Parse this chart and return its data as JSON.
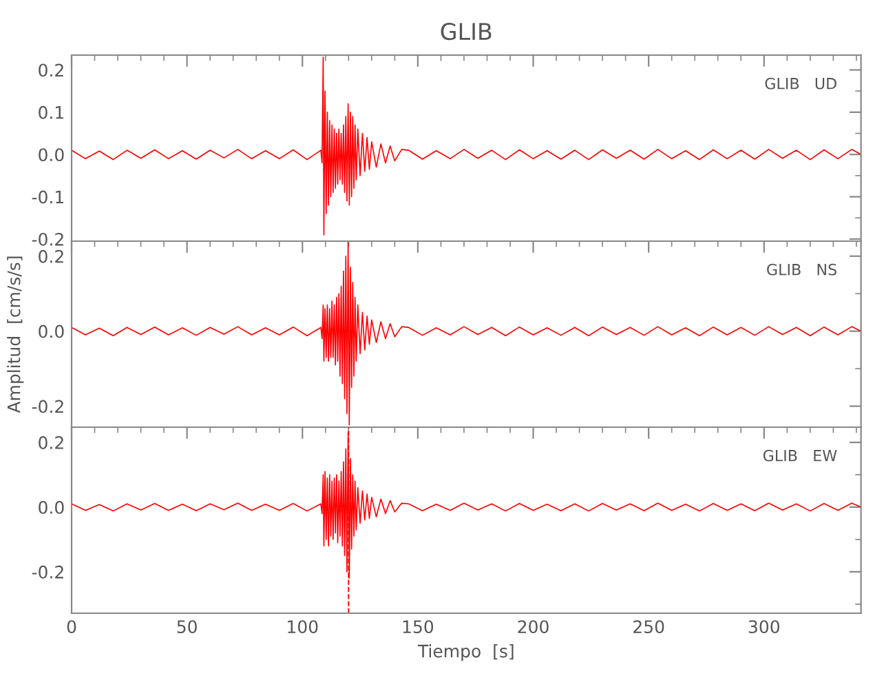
{
  "chart_data": [
    {
      "type": "line",
      "title": "GLIB",
      "annotations": [
        "GLIB   UD"
      ],
      "xlim": [
        0,
        342
      ],
      "xticks": [
        0,
        50,
        100,
        150,
        200,
        250,
        300
      ],
      "ylim": [
        -0.205,
        0.235
      ],
      "yticks": [
        {
          "value": -0.2,
          "label": "-0.2"
        },
        {
          "value": -0.1,
          "label": "-0.1"
        },
        {
          "value": 0.0,
          "label": "0.0"
        },
        {
          "value": 0.1,
          "label": "0.1"
        },
        {
          "value": 0.2,
          "label": "0.2"
        }
      ],
      "tick_labels": "y",
      "grid": false,
      "marker": "none",
      "line_style": "solid",
      "x": [
        0,
        6,
        12,
        18,
        24,
        30,
        36,
        42,
        48,
        54,
        60,
        66,
        72,
        78,
        84,
        90,
        96,
        102,
        108,
        108.5,
        109,
        109.3,
        109.8,
        110.3,
        110.8,
        111.3,
        111.8,
        112.3,
        112.8,
        113.3,
        113.8,
        114.3,
        114.8,
        115.3,
        115.8,
        116.3,
        116.8,
        117.3,
        117.8,
        118.3,
        118.8,
        119.3,
        119.8,
        120.3,
        120.8,
        121.3,
        121.8,
        122.3,
        122.8,
        123.3,
        124,
        125,
        126,
        127,
        128,
        129,
        130,
        132,
        134,
        136,
        138,
        140,
        143,
        146,
        152,
        158,
        164,
        170,
        176,
        182,
        188,
        194,
        200,
        206,
        212,
        218,
        224,
        230,
        236,
        242,
        248,
        254,
        260,
        266,
        272,
        278,
        284,
        290,
        296,
        302,
        308,
        314,
        320,
        326,
        332,
        338,
        342
      ],
      "series": [
        {
          "color": "#ff0000",
          "values": [
            0.01,
            -0.01,
            0.008,
            -0.012,
            0.01,
            -0.009,
            0.011,
            -0.01,
            0.009,
            -0.011,
            0.01,
            -0.008,
            0.012,
            -0.01,
            0.009,
            -0.01,
            0.011,
            -0.012,
            0.01,
            -0.02,
            0.23,
            -0.19,
            0.15,
            -0.14,
            0.1,
            -0.12,
            0.08,
            -0.1,
            0.07,
            -0.09,
            0.06,
            -0.08,
            0.05,
            -0.07,
            0.06,
            -0.06,
            0.05,
            -0.07,
            0.07,
            -0.09,
            0.09,
            -0.11,
            0.12,
            -0.12,
            0.1,
            -0.1,
            0.09,
            -0.08,
            0.07,
            -0.06,
            0.06,
            -0.05,
            0.05,
            -0.04,
            0.04,
            -0.035,
            0.03,
            -0.03,
            0.025,
            -0.02,
            0.02,
            -0.015,
            0.012,
            0.01,
            -0.011,
            0.009,
            -0.01,
            0.012,
            -0.009,
            0.01,
            -0.012,
            0.011,
            -0.01,
            0.009,
            -0.011,
            0.01,
            -0.012,
            0.011,
            -0.009,
            0.01,
            -0.011,
            0.012,
            -0.01,
            0.009,
            -0.012,
            0.011,
            -0.01,
            0.01,
            -0.011,
            0.012,
            -0.009,
            0.01,
            -0.012,
            0.011,
            -0.01,
            0.012,
            0.0
          ]
        }
      ]
    },
    {
      "type": "line",
      "ylabel": "Amplitud  [cm/s/s]",
      "annotations": [
        "GLIB   NS"
      ],
      "xlim": [
        0,
        342
      ],
      "xticks": [
        0,
        50,
        100,
        150,
        200,
        250,
        300
      ],
      "ylim": [
        -0.256,
        0.24
      ],
      "yticks": [
        {
          "value": -0.2,
          "label": "-0.2"
        },
        {
          "value": 0.0,
          "label": "0.0"
        },
        {
          "value": 0.2,
          "label": "0.2"
        }
      ],
      "tick_labels": "y",
      "grid": false,
      "marker": "none",
      "line_style": "solid",
      "x": [
        0,
        6,
        12,
        18,
        24,
        30,
        36,
        42,
        48,
        54,
        60,
        66,
        72,
        78,
        84,
        90,
        96,
        102,
        108,
        108.5,
        109,
        109.3,
        109.8,
        110.3,
        110.8,
        111.3,
        111.8,
        112.3,
        112.8,
        113.3,
        113.8,
        114.3,
        114.8,
        115.3,
        115.8,
        116.3,
        116.8,
        117.3,
        117.8,
        118.3,
        118.8,
        119.3,
        119.8,
        120.3,
        120.8,
        121.3,
        121.8,
        122.3,
        122.8,
        123.3,
        124,
        125,
        126,
        127,
        128,
        129,
        130,
        132,
        134,
        136,
        138,
        140,
        143,
        146,
        152,
        158,
        164,
        170,
        176,
        182,
        188,
        194,
        200,
        206,
        212,
        218,
        224,
        230,
        236,
        242,
        248,
        254,
        260,
        266,
        272,
        278,
        284,
        290,
        296,
        302,
        308,
        314,
        320,
        326,
        332,
        338,
        342
      ],
      "series": [
        {
          "color": "#ff0000",
          "values": [
            0.01,
            -0.01,
            0.008,
            -0.012,
            0.01,
            -0.009,
            0.011,
            -0.01,
            0.009,
            -0.011,
            0.01,
            -0.008,
            0.012,
            -0.01,
            0.009,
            -0.01,
            0.011,
            -0.012,
            0.01,
            -0.02,
            0.07,
            -0.08,
            0.06,
            -0.07,
            0.07,
            -0.08,
            0.06,
            -0.07,
            0.08,
            -0.07,
            0.07,
            -0.09,
            0.09,
            -0.08,
            0.1,
            -0.12,
            0.12,
            -0.14,
            0.16,
            -0.18,
            0.2,
            -0.22,
            0.24,
            -0.25,
            0.17,
            -0.15,
            0.13,
            -0.12,
            0.09,
            -0.08,
            0.07,
            -0.06,
            0.05,
            -0.05,
            0.04,
            -0.035,
            0.03,
            -0.03,
            0.025,
            -0.02,
            0.02,
            -0.015,
            0.012,
            0.01,
            -0.011,
            0.009,
            -0.01,
            0.012,
            -0.009,
            0.01,
            -0.012,
            0.011,
            -0.01,
            0.009,
            -0.011,
            0.01,
            -0.012,
            0.011,
            -0.009,
            0.01,
            -0.011,
            0.012,
            -0.01,
            0.009,
            -0.012,
            0.011,
            -0.01,
            0.01,
            -0.011,
            0.012,
            -0.009,
            0.01,
            -0.012,
            0.011,
            -0.01,
            0.012,
            0.0
          ]
        }
      ]
    },
    {
      "type": "line",
      "xlabel": "Tiempo  [s]",
      "annotations": [
        "GLIB   EW"
      ],
      "xlim": [
        0,
        342
      ],
      "xticks": [
        0,
        50,
        100,
        150,
        200,
        250,
        300
      ],
      "ylim": [
        -0.328,
        0.247
      ],
      "yticks": [
        {
          "value": -0.2,
          "label": "-0.2"
        },
        {
          "value": 0.0,
          "label": "0.0"
        },
        {
          "value": 0.2,
          "label": "0.2"
        }
      ],
      "grid": false,
      "marker": "none",
      "line_style": "solid",
      "ref_lines": [
        {
          "axis": "x",
          "value": 120,
          "color": "#ff0000",
          "line_style": "dashed"
        }
      ],
      "x": [
        0,
        6,
        12,
        18,
        24,
        30,
        36,
        42,
        48,
        54,
        60,
        66,
        72,
        78,
        84,
        90,
        96,
        102,
        108,
        108.5,
        109,
        109.3,
        109.8,
        110.3,
        110.8,
        111.3,
        111.8,
        112.3,
        112.8,
        113.3,
        113.8,
        114.3,
        114.8,
        115.3,
        115.8,
        116.3,
        116.8,
        117.3,
        117.8,
        118.3,
        118.8,
        119.3,
        119.8,
        120.3,
        120.8,
        121.3,
        121.8,
        122.3,
        122.8,
        123.3,
        124,
        125,
        126,
        127,
        128,
        129,
        130,
        132,
        134,
        136,
        138,
        140,
        143,
        146,
        152,
        158,
        164,
        170,
        176,
        182,
        188,
        194,
        200,
        206,
        212,
        218,
        224,
        230,
        236,
        242,
        248,
        254,
        260,
        266,
        272,
        278,
        284,
        290,
        296,
        302,
        308,
        314,
        320,
        326,
        332,
        338,
        342
      ],
      "series": [
        {
          "color": "#ff0000",
          "values": [
            0.01,
            -0.01,
            0.008,
            -0.012,
            0.01,
            -0.009,
            0.011,
            -0.01,
            0.009,
            -0.011,
            0.01,
            -0.008,
            0.012,
            -0.01,
            0.009,
            -0.01,
            0.011,
            -0.012,
            0.01,
            -0.02,
            0.1,
            -0.12,
            0.11,
            -0.1,
            0.09,
            -0.12,
            0.1,
            -0.09,
            0.08,
            -0.1,
            0.09,
            -0.08,
            0.1,
            -0.11,
            0.08,
            -0.09,
            0.11,
            -0.12,
            0.14,
            -0.15,
            0.18,
            -0.2,
            0.23,
            -0.22,
            0.15,
            -0.13,
            0.1,
            -0.09,
            0.08,
            -0.07,
            0.06,
            -0.05,
            0.05,
            -0.04,
            0.04,
            -0.035,
            0.03,
            -0.03,
            0.025,
            -0.02,
            0.02,
            -0.015,
            0.012,
            0.01,
            -0.011,
            0.009,
            -0.01,
            0.012,
            -0.009,
            0.01,
            -0.012,
            0.011,
            -0.01,
            0.009,
            -0.011,
            0.01,
            -0.012,
            0.011,
            -0.009,
            0.01,
            -0.011,
            0.012,
            -0.01,
            0.009,
            -0.012,
            0.011,
            -0.01,
            0.01,
            -0.011,
            0.012,
            -0.009,
            0.01,
            -0.012,
            0.011,
            -0.01,
            0.012,
            0.0
          ]
        }
      ]
    }
  ]
}
